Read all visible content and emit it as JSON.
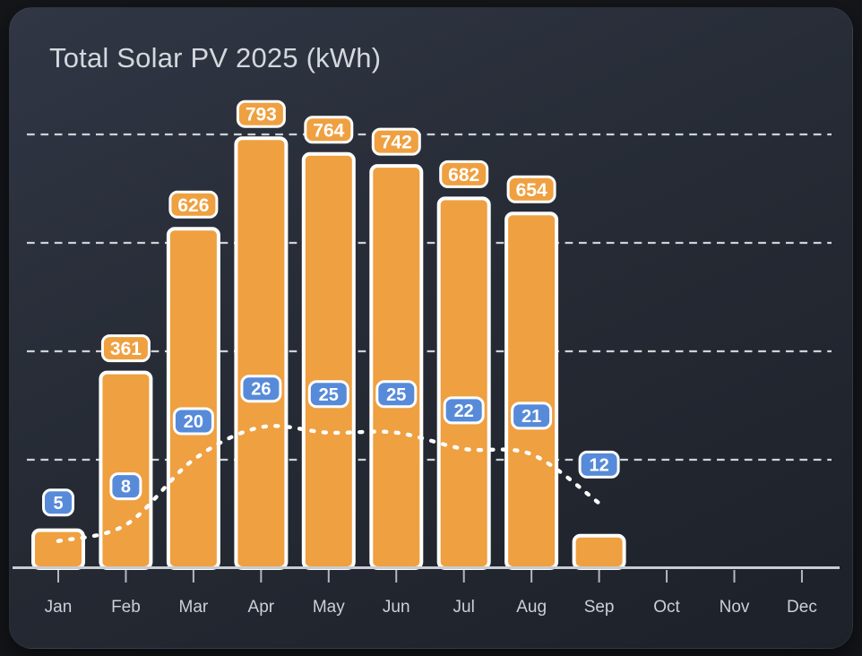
{
  "page": {
    "background": "#14161a"
  },
  "card": {
    "title": "Total Solar PV 2025 (kWh)",
    "title_color": "#d4d8dd",
    "background_from": "#303644",
    "background_mid": "#262b35",
    "background_to": "#1d2129"
  },
  "chart_data": {
    "type": "bar",
    "title": "Total Solar PV 2025 (kWh)",
    "categories": [
      "Jan",
      "Feb",
      "Mar",
      "Apr",
      "May",
      "Jun",
      "Jul",
      "Aug",
      "Sep",
      "Oct",
      "Nov",
      "Dec"
    ],
    "series": [
      {
        "name": "monthly-total-kwh",
        "type": "bar",
        "values": [
          70,
          361,
          626,
          793,
          764,
          742,
          682,
          654,
          60,
          null,
          null,
          null
        ],
        "data_labels": [
          null,
          "361",
          "626",
          "793",
          "764",
          "742",
          "682",
          "654",
          null,
          null,
          null,
          null
        ],
        "estimated_unlabeled_indices": [
          0,
          8
        ],
        "color": "#efa041",
        "border_color": "#ffffff"
      },
      {
        "name": "daily-average-trend",
        "type": "line",
        "style": "dotted",
        "values": [
          5,
          8,
          20,
          26,
          25,
          25,
          22,
          21,
          12,
          null,
          null,
          null
        ],
        "data_labels": [
          "5",
          "8",
          "20",
          "26",
          "25",
          "25",
          "22",
          "21",
          "12",
          null,
          null,
          null
        ],
        "color": "#ffffff",
        "badge_color": "#578bd9",
        "badge_border_color": "#ffffff"
      }
    ],
    "y_axis": {
      "min": 0,
      "max": 860,
      "gridline_values": [
        200,
        400,
        600,
        800
      ],
      "tick_labels_shown": false,
      "grid_style": "dashed"
    },
    "y2_axis": {
      "min": 0,
      "max": 86,
      "units_per_gridline": 20,
      "tick_labels_shown": false
    },
    "legend_position": "none",
    "colors": {
      "grid": "#ced2d8",
      "axis": "#c9ccd2",
      "tick": "#b3b8c0",
      "axis_label": "#ccd0d6",
      "badge_text": "#ffffff"
    }
  }
}
